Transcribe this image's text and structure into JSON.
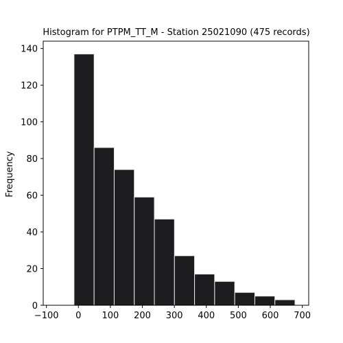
{
  "chart_data": {
    "type": "bar",
    "title": "Histogram for PTPM_TT_M - Station 25021090 (475 records)",
    "xlabel": "",
    "ylabel": "Frequency",
    "bins": [
      {
        "start": -13.7,
        "end": 49.1,
        "count": 137
      },
      {
        "start": 49.1,
        "end": 111.9,
        "count": 86
      },
      {
        "start": 111.9,
        "end": 174.7,
        "count": 74
      },
      {
        "start": 174.7,
        "end": 237.5,
        "count": 59
      },
      {
        "start": 237.5,
        "end": 300.3,
        "count": 47
      },
      {
        "start": 300.3,
        "end": 363.1,
        "count": 27
      },
      {
        "start": 363.1,
        "end": 425.9,
        "count": 17
      },
      {
        "start": 425.9,
        "end": 488.7,
        "count": 13
      },
      {
        "start": 488.7,
        "end": 551.5,
        "count": 7
      },
      {
        "start": 551.5,
        "end": 614.3,
        "count": 5
      },
      {
        "start": 614.3,
        "end": 677.1,
        "count": 3
      }
    ],
    "xlim": [
      -110,
      720
    ],
    "ylim": [
      0,
      144
    ],
    "xticks": [
      -100,
      0,
      100,
      200,
      300,
      400,
      500,
      600,
      700
    ],
    "yticks": [
      0,
      20,
      40,
      60,
      80,
      100,
      120,
      140
    ],
    "grid": false,
    "colors": {
      "bar_fill": "#1c1c1f",
      "bar_edge": "#e8e8ee",
      "axis": "#000000"
    }
  }
}
